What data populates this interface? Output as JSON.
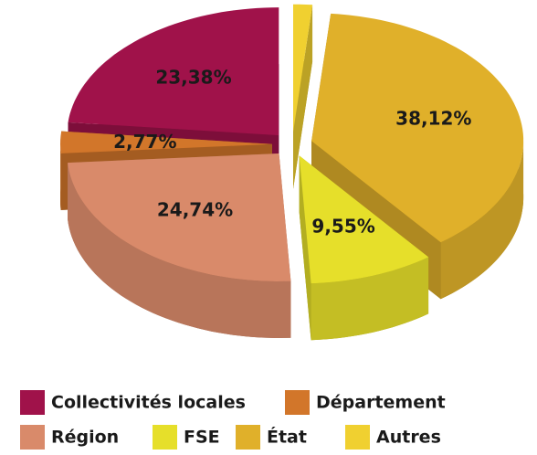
{
  "chart_data": {
    "type": "pie",
    "categories": [
      "Collectivités locales",
      "Département",
      "Région",
      "FSE",
      "État",
      "Autres"
    ],
    "values": [
      23.38,
      2.77,
      24.74,
      9.55,
      38.12,
      1.45
    ],
    "value_labels": [
      "23,38%",
      "2,77%",
      "24,74%",
      "9,55%",
      "38,12%",
      "1,45%"
    ],
    "colors": [
      "#a0124a",
      "#d2762a",
      "#d98a6a",
      "#e6df2a",
      "#e0b02a",
      "#f0d030"
    ],
    "legend": "bottom"
  }
}
